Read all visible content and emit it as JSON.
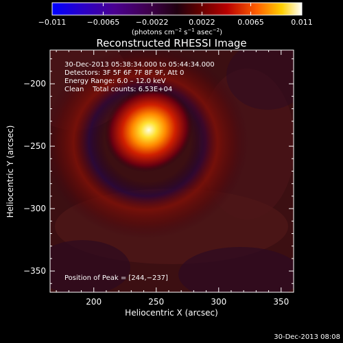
{
  "chart_data": {
    "type": "heatmap",
    "title": "Reconstructed RHESSI Image",
    "xlabel": "Heliocentric X (arcsec)",
    "ylabel": "Heliocentric Y (arcsec)",
    "xlim": [
      165,
      360
    ],
    "ylim": [
      -367,
      -173
    ],
    "x_ticks": [
      200,
      250,
      300,
      350
    ],
    "y_ticks": [
      -200,
      -250,
      -300,
      -350
    ],
    "colorbar": {
      "min": -0.011,
      "max": 0.011,
      "ticks": [
        -0.011,
        -0.0065,
        -0.0022,
        0.0022,
        0.0065,
        0.011
      ],
      "tick_labels": [
        "−0.011",
        "−0.0065",
        "−0.0022",
        "0.0022",
        "0.0065",
        "0.011"
      ],
      "unit_label": "(photons cm",
      "unit_sup1": "−2",
      "unit_mid": " s",
      "unit_sup2": "−1",
      "unit_mid2": " asec",
      "unit_sup3": "−2",
      "unit_end": ")"
    },
    "annotations": {
      "time_range": "30-Dec-2013 05:38:34.000 to 05:44:34.000",
      "detectors": "Detectors: 3F 5F 6F 7F 8F 9F, Att 0",
      "energy_range": "Energy Range: 6.0 – 12.0 keV",
      "method": "Clean    Total counts: 6.53E+04",
      "peak_position": "Position of Peak = [244,−237]"
    },
    "peak": {
      "x": 244,
      "y": -237,
      "value": 0.011
    },
    "footer_timestamp": "30-Dec-2013 08:08"
  }
}
